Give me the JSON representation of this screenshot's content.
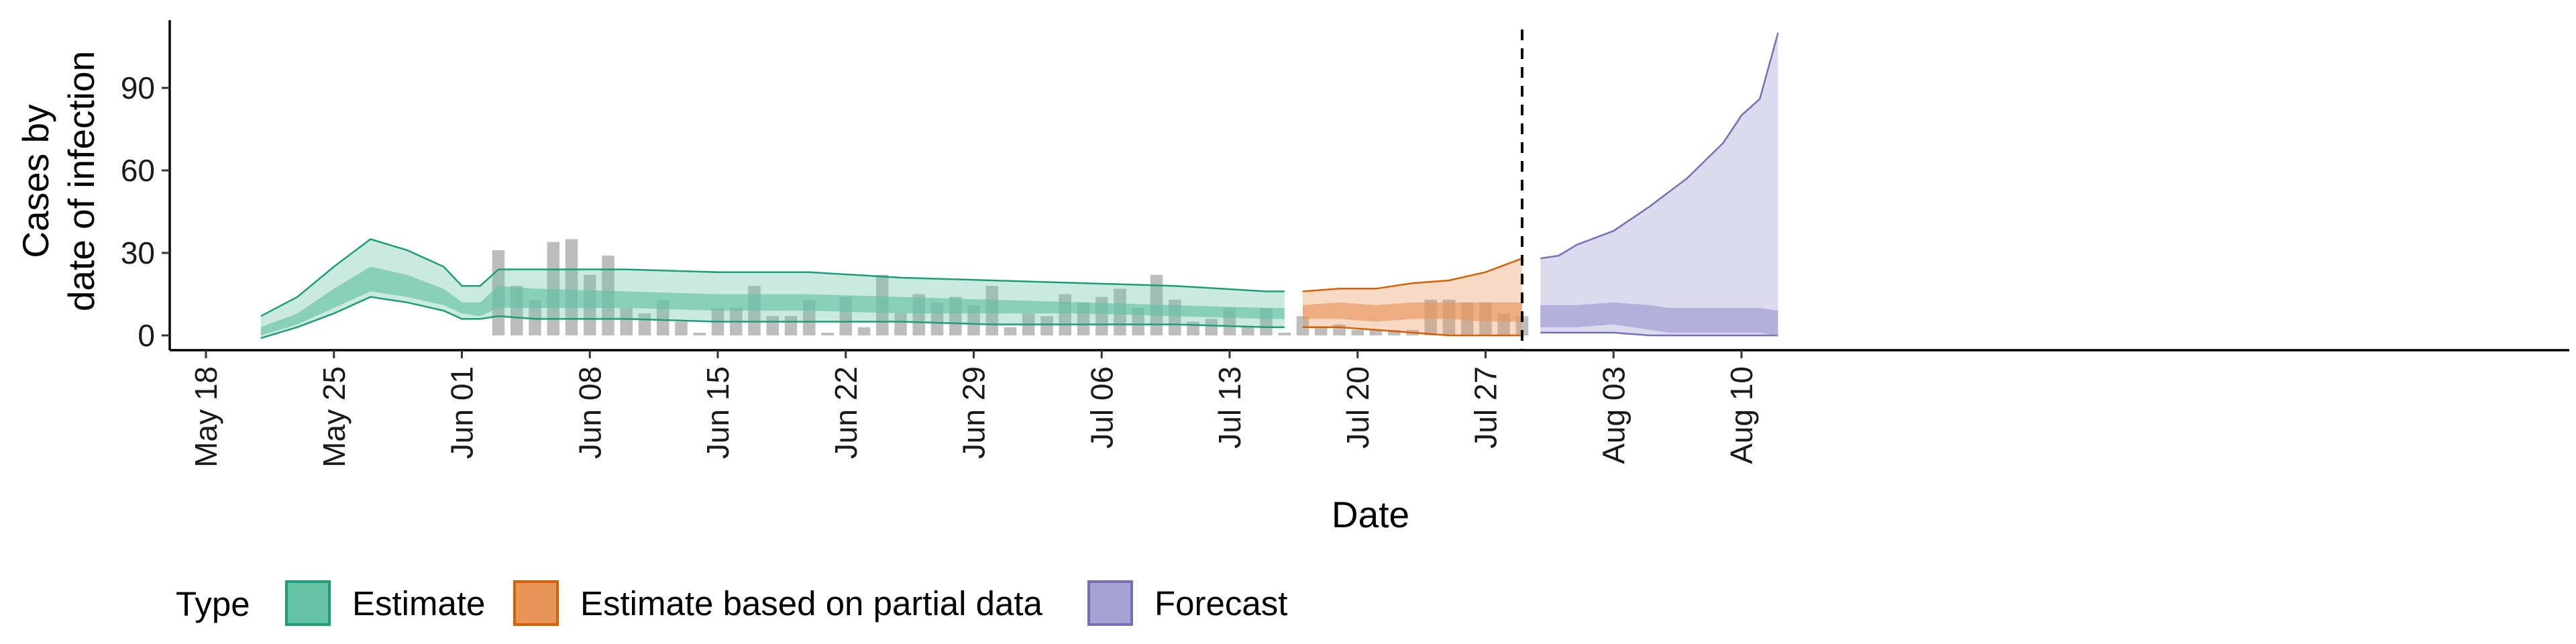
{
  "chart_data": {
    "type": "area",
    "title": "",
    "xlabel": "Date",
    "ylabel_lines": [
      "Cases by",
      "date of infection"
    ],
    "x_ticks": [
      "May 18",
      "May 25",
      "Jun 01",
      "Jun 08",
      "Jun 15",
      "Jun 22",
      "Jun 29",
      "Jul 06",
      "Jul 13",
      "Jul 20",
      "Jul 27",
      "Aug 03",
      "Aug 10"
    ],
    "y_ticks": [
      0,
      30,
      60,
      90
    ],
    "ylim": [
      -5,
      115
    ],
    "xlim": [
      "2020-05-16",
      "2020-08-15"
    ],
    "vline_date": "2020-07-29",
    "grid": false,
    "legend": {
      "position": "bottom",
      "title": "Type",
      "items": [
        {
          "label": "Estimate",
          "fill": "#66c2a5",
          "stroke": "#1b9e77"
        },
        {
          "label": "Estimate based on partial data",
          "fill": "#e8955a",
          "stroke": "#d95f02"
        },
        {
          "label": "Forecast",
          "fill": "#a6a3d4",
          "stroke": "#7570b3"
        }
      ]
    },
    "colors": {
      "estimate": "#1b9e77",
      "partial": "#d95f02",
      "forecast": "#7570b3",
      "observed_bars": "#bdbdbd"
    },
    "observed_cases": {
      "x": [
        "2020-06-03",
        "2020-06-04",
        "2020-06-05",
        "2020-06-06",
        "2020-06-07",
        "2020-06-08",
        "2020-06-09",
        "2020-06-10",
        "2020-06-11",
        "2020-06-12",
        "2020-06-13",
        "2020-06-14",
        "2020-06-15",
        "2020-06-16",
        "2020-06-17",
        "2020-06-18",
        "2020-06-19",
        "2020-06-20",
        "2020-06-21",
        "2020-06-22",
        "2020-06-23",
        "2020-06-24",
        "2020-06-25",
        "2020-06-26",
        "2020-06-27",
        "2020-06-28",
        "2020-06-29",
        "2020-06-30",
        "2020-07-01",
        "2020-07-02",
        "2020-07-03",
        "2020-07-04",
        "2020-07-05",
        "2020-07-06",
        "2020-07-07",
        "2020-07-08",
        "2020-07-09",
        "2020-07-10",
        "2020-07-11",
        "2020-07-12",
        "2020-07-13",
        "2020-07-14",
        "2020-07-15",
        "2020-07-16",
        "2020-07-17",
        "2020-07-18",
        "2020-07-19",
        "2020-07-20",
        "2020-07-21",
        "2020-07-22",
        "2020-07-23",
        "2020-07-24",
        "2020-07-25",
        "2020-07-26",
        "2020-07-27",
        "2020-07-28",
        "2020-07-29"
      ],
      "values": [
        31,
        18,
        13,
        34,
        35,
        22,
        29,
        10,
        8,
        13,
        5,
        0,
        10,
        10,
        18,
        7,
        7,
        13,
        0,
        14,
        3,
        22,
        8,
        15,
        12,
        14,
        11,
        18,
        3,
        8,
        7,
        15,
        12,
        14,
        17,
        10,
        22,
        13,
        5,
        6,
        10,
        3,
        10,
        1,
        7,
        3,
        4,
        2,
        2,
        2,
        2,
        13,
        13,
        12,
        12,
        8,
        7
      ]
    },
    "series": [
      {
        "name": "Estimate",
        "x": [
          "2020-05-21",
          "2020-05-23",
          "2020-05-25",
          "2020-05-27",
          "2020-05-29",
          "2020-05-31",
          "2020-06-01",
          "2020-06-02",
          "2020-06-03",
          "2020-06-05",
          "2020-06-10",
          "2020-06-15",
          "2020-06-20",
          "2020-06-25",
          "2020-06-30",
          "2020-07-05",
          "2020-07-10",
          "2020-07-15",
          "2020-07-16"
        ],
        "upper90": [
          7,
          14,
          25,
          35,
          31,
          25,
          18,
          18,
          24,
          24,
          24,
          23,
          23,
          21,
          20,
          19,
          18,
          16,
          16
        ],
        "upper50": [
          3,
          8,
          17,
          25,
          22,
          17,
          12,
          12,
          18,
          17,
          16,
          15,
          15,
          14,
          13,
          12,
          11,
          10,
          10
        ],
        "median": [
          2,
          6,
          13,
          20,
          18,
          14,
          10,
          10,
          14,
          14,
          13,
          13,
          12,
          12,
          11,
          10,
          10,
          8,
          8
        ],
        "lower50": [
          0,
          4,
          10,
          16,
          14,
          11,
          8,
          7,
          10,
          10,
          10,
          9,
          9,
          8,
          8,
          8,
          7,
          6,
          6
        ],
        "lower90": [
          -1,
          3,
          8,
          14,
          12,
          9,
          6,
          6,
          7,
          6,
          6,
          5,
          5,
          5,
          4,
          4,
          4,
          3,
          3
        ]
      },
      {
        "name": "Estimate based on partial data",
        "x": [
          "2020-07-17",
          "2020-07-19",
          "2020-07-21",
          "2020-07-23",
          "2020-07-25",
          "2020-07-27",
          "2020-07-29"
        ],
        "upper90": [
          16,
          17,
          17,
          19,
          20,
          23,
          28
        ],
        "upper50": [
          11,
          12,
          11,
          12,
          12,
          12,
          12
        ],
        "median": [
          8,
          9,
          8,
          9,
          9,
          9,
          9
        ],
        "lower50": [
          6,
          6,
          5,
          6,
          6,
          5,
          5
        ],
        "lower90": [
          3,
          3,
          2,
          1,
          0,
          0,
          0
        ]
      },
      {
        "name": "Forecast",
        "x": [
          "2020-07-30",
          "2020-07-31",
          "2020-08-01",
          "2020-08-03",
          "2020-08-05",
          "2020-08-06",
          "2020-08-07",
          "2020-08-09",
          "2020-08-10",
          "2020-08-11",
          "2020-08-12"
        ],
        "upper90": [
          28,
          29,
          33,
          38,
          47,
          52,
          57,
          70,
          80,
          86,
          110
        ],
        "upper50": [
          11,
          11,
          11,
          12,
          11,
          10,
          10,
          10,
          10,
          10,
          9
        ],
        "median": [
          7,
          7,
          7,
          8,
          7,
          6,
          6,
          6,
          6,
          6,
          5
        ],
        "lower50": [
          3,
          3,
          3,
          4,
          2,
          1,
          1,
          1,
          1,
          1,
          0
        ],
        "lower90": [
          1,
          1,
          1,
          1,
          0,
          0,
          0,
          0,
          0,
          0,
          0
        ]
      }
    ]
  }
}
